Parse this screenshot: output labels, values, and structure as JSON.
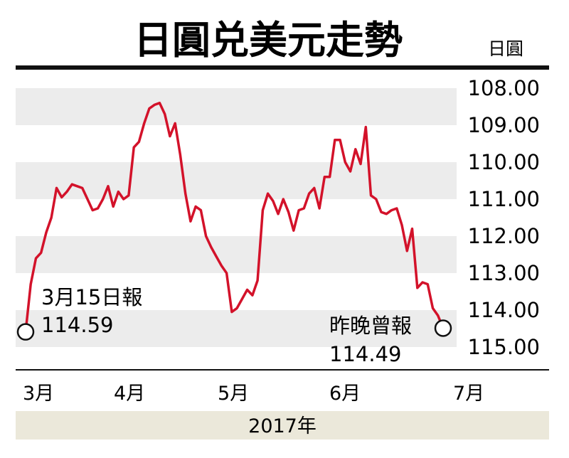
{
  "chart_data": {
    "type": "line",
    "title": "日圓兑美元走勢",
    "unit_label": "日圓",
    "y_inverted": true,
    "ylim": [
      108.0,
      115.0
    ],
    "y_ticks": [
      "108.00",
      "109.00",
      "110.00",
      "111.00",
      "112.00",
      "113.00",
      "114.00",
      "115.00"
    ],
    "months": [
      "3月",
      "4月",
      "5月",
      "6月",
      "7月"
    ],
    "year_label": "2017年",
    "x_unit": "day of month-axis (index from 15 Mar 2017)",
    "series": [
      {
        "color": "#d3122a",
        "points": [
          [
            0,
            114.59
          ],
          [
            1,
            113.3
          ],
          [
            2,
            112.6
          ],
          [
            3,
            112.45
          ],
          [
            4,
            111.9
          ],
          [
            5,
            111.5
          ],
          [
            6,
            110.7
          ],
          [
            7,
            110.95
          ],
          [
            8,
            110.8
          ],
          [
            9,
            110.6
          ],
          [
            10,
            110.65
          ],
          [
            11,
            110.7
          ],
          [
            12,
            111.0
          ],
          [
            13,
            111.3
          ],
          [
            14,
            111.25
          ],
          [
            15,
            111.0
          ],
          [
            16,
            110.65
          ],
          [
            17,
            111.2
          ],
          [
            18,
            110.8
          ],
          [
            19,
            111.0
          ],
          [
            20,
            110.9
          ],
          [
            21,
            109.6
          ],
          [
            22,
            109.45
          ],
          [
            23,
            108.95
          ],
          [
            24,
            108.55
          ],
          [
            25,
            108.45
          ],
          [
            26,
            108.4
          ],
          [
            27,
            108.7
          ],
          [
            28,
            109.3
          ],
          [
            29,
            108.95
          ],
          [
            30,
            109.8
          ],
          [
            31,
            110.85
          ],
          [
            32,
            111.6
          ],
          [
            33,
            111.2
          ],
          [
            34,
            111.3
          ],
          [
            35,
            112.0
          ],
          [
            36,
            112.3
          ],
          [
            37,
            112.55
          ],
          [
            38,
            112.8
          ],
          [
            39,
            113.0
          ],
          [
            40,
            114.05
          ],
          [
            41,
            113.95
          ],
          [
            42,
            113.7
          ],
          [
            43,
            113.45
          ],
          [
            44,
            113.6
          ],
          [
            45,
            113.2
          ],
          [
            46,
            111.3
          ],
          [
            47,
            110.85
          ],
          [
            48,
            111.05
          ],
          [
            49,
            111.4
          ],
          [
            50,
            111.0
          ],
          [
            51,
            111.35
          ],
          [
            52,
            111.85
          ],
          [
            53,
            111.3
          ],
          [
            54,
            111.25
          ],
          [
            55,
            110.85
          ],
          [
            56,
            110.7
          ],
          [
            57,
            111.25
          ],
          [
            58,
            110.4
          ],
          [
            59,
            110.4
          ],
          [
            60,
            109.4
          ],
          [
            61,
            109.4
          ],
          [
            62,
            110.0
          ],
          [
            63,
            110.25
          ],
          [
            64,
            109.65
          ],
          [
            65,
            110.05
          ],
          [
            66,
            109.05
          ],
          [
            67,
            110.9
          ],
          [
            68,
            111.0
          ],
          [
            69,
            111.35
          ],
          [
            70,
            111.4
          ],
          [
            71,
            111.3
          ],
          [
            72,
            111.25
          ],
          [
            73,
            111.7
          ],
          [
            74,
            112.4
          ],
          [
            75,
            111.8
          ],
          [
            76,
            113.4
          ],
          [
            77,
            113.25
          ],
          [
            78,
            113.3
          ],
          [
            79,
            113.95
          ],
          [
            80,
            114.15
          ],
          [
            81,
            114.49
          ]
        ]
      }
    ],
    "annotations": [
      {
        "date_label": "3月15日報",
        "value_label": "114.59"
      },
      {
        "date_label": "昨晚曾報",
        "value_label": "114.49"
      }
    ]
  }
}
